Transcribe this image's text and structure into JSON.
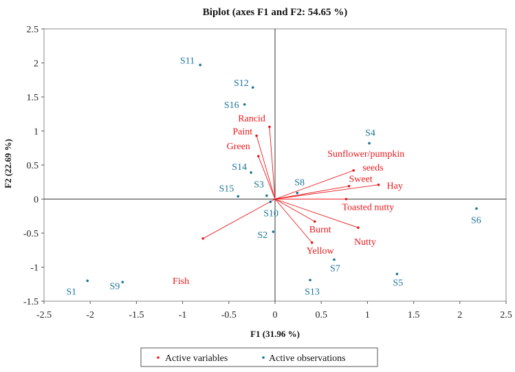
{
  "chart_data": {
    "type": "scatter",
    "title": "Biplot (axes F1 and F2: 54.65 %)",
    "xlabel": "F1 (31.96 %)",
    "ylabel": "F2 (22.69 %)",
    "xlim": [
      -2.5,
      2.5
    ],
    "ylim": [
      -1.5,
      2.5
    ],
    "xticks": [
      -2.5,
      -2,
      -1.5,
      -1,
      -0.5,
      0,
      0.5,
      1,
      1.5,
      2,
      2.5
    ],
    "yticks": [
      -1.5,
      -1,
      -0.5,
      0,
      0.5,
      1,
      1.5,
      2,
      2.5
    ],
    "xtick_labels": [
      "-2.5",
      "-2",
      "-1.5",
      "-1",
      "-0.5",
      "0",
      "0.5",
      "1",
      "1.5",
      "2",
      "2.5"
    ],
    "ytick_labels": [
      "-1.5",
      "-1",
      "-0.5",
      "0",
      "0.5",
      "1",
      "1.5",
      "2",
      "2.5"
    ],
    "legend": {
      "position": "bottom",
      "entries": [
        {
          "label": "Active variables",
          "color": "#e8191c"
        },
        {
          "label": "Active observations",
          "color": "#1a7496"
        }
      ]
    },
    "colors": {
      "variables": "#e8191c",
      "observations": "#1a7496",
      "axis_zero": "#333333",
      "frame": "#888888"
    },
    "variables": [
      {
        "name": "Rancid",
        "x": -0.06,
        "y": 1.06
      },
      {
        "name": "Paint",
        "x": -0.2,
        "y": 0.93
      },
      {
        "name": "Green",
        "x": -0.18,
        "y": 0.63
      },
      {
        "name": "Sunflower/pumpkin seeds",
        "x": 0.85,
        "y": 0.42
      },
      {
        "name": "Sweet",
        "x": 0.8,
        "y": 0.19
      },
      {
        "name": "Hay",
        "x": 1.12,
        "y": 0.21
      },
      {
        "name": "Toasted nutty",
        "x": 0.77,
        "y": 0.0
      },
      {
        "name": "Burnt",
        "x": 0.43,
        "y": -0.33
      },
      {
        "name": "Nutty",
        "x": 0.9,
        "y": -0.42
      },
      {
        "name": "Yellow",
        "x": 0.4,
        "y": -0.64
      },
      {
        "name": "Fish",
        "x": -0.78,
        "y": -0.58
      }
    ],
    "observations": [
      {
        "name": "S11",
        "x": -0.81,
        "y": 1.97
      },
      {
        "name": "S12",
        "x": -0.24,
        "y": 1.64
      },
      {
        "name": "S16",
        "x": -0.33,
        "y": 1.39
      },
      {
        "name": "S14",
        "x": -0.26,
        "y": 0.39
      },
      {
        "name": "S15",
        "x": -0.4,
        "y": 0.04
      },
      {
        "name": "S3",
        "x": -0.09,
        "y": 0.05
      },
      {
        "name": "S10",
        "x": -0.05,
        "y": -0.04
      },
      {
        "name": "S8",
        "x": 0.24,
        "y": 0.09
      },
      {
        "name": "S4",
        "x": 1.02,
        "y": 0.82
      },
      {
        "name": "S6",
        "x": 2.18,
        "y": -0.14
      },
      {
        "name": "S2",
        "x": -0.02,
        "y": -0.48
      },
      {
        "name": "S7",
        "x": 0.64,
        "y": -0.89
      },
      {
        "name": "S13",
        "x": 0.38,
        "y": -1.19
      },
      {
        "name": "S5",
        "x": 1.32,
        "y": -1.1
      },
      {
        "name": "S1",
        "x": -2.03,
        "y": -1.2
      },
      {
        "name": "S9",
        "x": -1.65,
        "y": -1.22
      }
    ]
  }
}
